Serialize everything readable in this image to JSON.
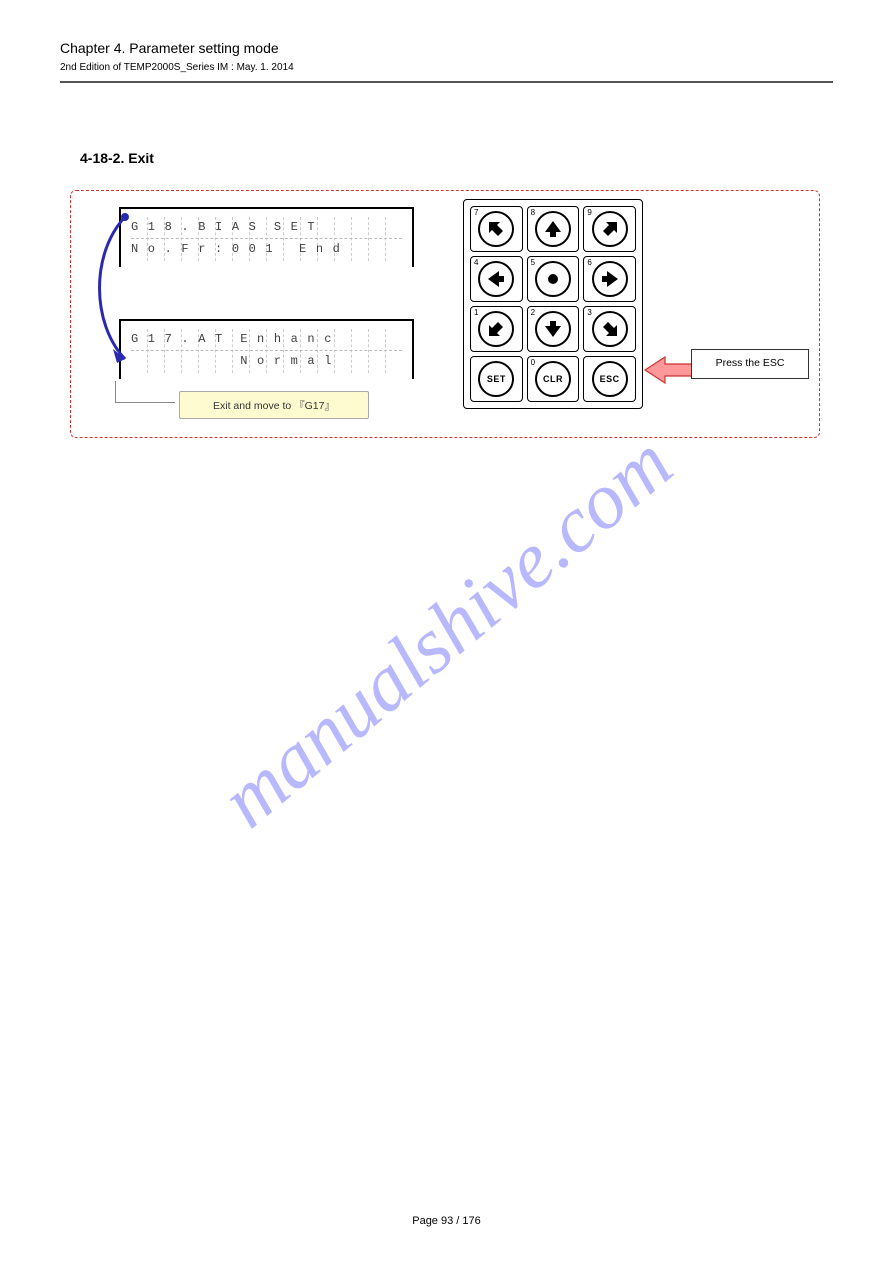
{
  "header": {
    "chapter": "Chapter 4. Parameter setting mode",
    "revision": "2nd Edition of TEMP2000S_Series IM : May. 1. 2014",
    "page_number": "Page 93 / 176"
  },
  "section": {
    "title": "4-18-2. Exit"
  },
  "diagram": {
    "lcd_top": {
      "line1": "G 1 8 . B I A S  S E T",
      "line2": "N o . F r : 0 0 1   E n d"
    },
    "lcd_bot": {
      "line1": "G 1 7 . A T  E n h a n c",
      "line2": "             N o r m a l"
    },
    "note": "Exit and move to 『G17』",
    "press_label": "Press the ESC",
    "keypad": {
      "rows": [
        [
          {
            "digit": "7",
            "icon": "arrow-up-left"
          },
          {
            "digit": "8",
            "icon": "arrow-up"
          },
          {
            "digit": "9",
            "icon": "arrow-up-right"
          }
        ],
        [
          {
            "digit": "4",
            "icon": "arrow-left"
          },
          {
            "digit": "5",
            "icon": "dot"
          },
          {
            "digit": "6",
            "icon": "arrow-right"
          }
        ],
        [
          {
            "digit": "1",
            "icon": "arrow-down-left"
          },
          {
            "digit": "2",
            "icon": "arrow-down"
          },
          {
            "digit": "3",
            "icon": "arrow-down-right"
          }
        ],
        [
          {
            "digit": "",
            "text": "SET"
          },
          {
            "digit": "0",
            "text": "CLR"
          },
          {
            "digit": "",
            "text": "ESC"
          }
        ]
      ]
    }
  },
  "colors": {
    "dash_border": "#cc3333",
    "note_bg": "#fefbd0",
    "curve_arrow": "#2a2ab0",
    "red_arrow_fill": "#ff9999",
    "red_arrow_stroke": "#cc3333",
    "watermark": "#8a8aff"
  },
  "watermark_text": "manualshive.com"
}
